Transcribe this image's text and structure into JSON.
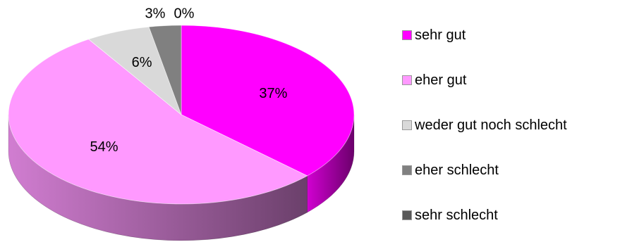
{
  "chart_data": {
    "type": "pie",
    "title": "",
    "three_d": true,
    "legend_position": "right",
    "series": [
      {
        "labels": [
          "sehr gut",
          "eher gut",
          "weder gut noch schlecht",
          "eher schlecht",
          "sehr schlecht"
        ],
        "values": [
          37,
          54,
          6,
          3,
          0
        ],
        "data_labels": [
          "37%",
          "54%",
          "6%",
          "3%",
          "0%"
        ],
        "colors": [
          "#ff00ff",
          "#ff99ff",
          "#d9d9d9",
          "#808080",
          "#595959"
        ]
      }
    ]
  }
}
